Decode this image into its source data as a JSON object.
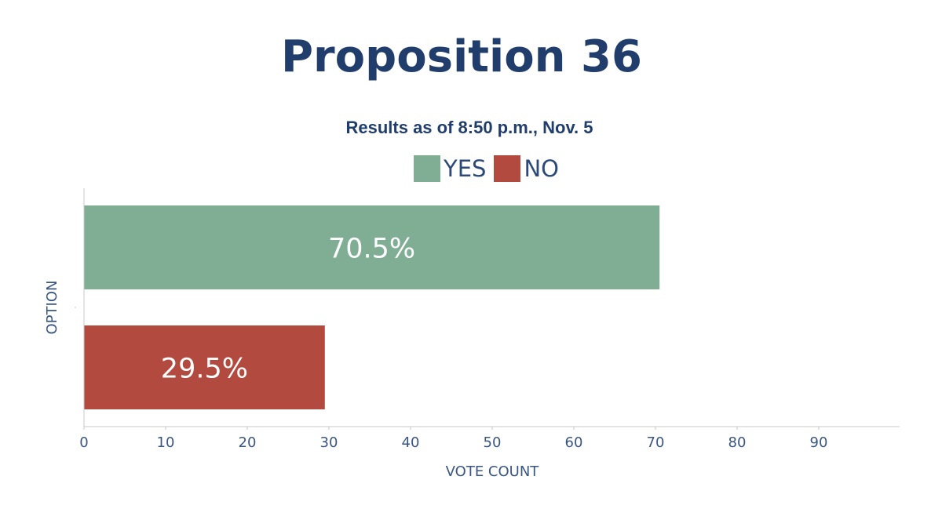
{
  "chart_data": {
    "type": "bar",
    "orientation": "horizontal",
    "title": "Proposition 36",
    "subtitle": "Results as of 8:50 p.m., Nov. 5",
    "xlabel": "VOTE COUNT",
    "ylabel": "OPTION",
    "xlim": [
      0,
      100
    ],
    "xticks": [
      "0",
      "10",
      "20",
      "30",
      "40",
      "50",
      "60",
      "70",
      "80",
      "90"
    ],
    "grid": false,
    "legend_position": "top-center",
    "categories": [
      "YES",
      "NO"
    ],
    "values": [
      70.5,
      29.5
    ],
    "data_labels": [
      "70.5%",
      "29.5%"
    ],
    "colors": [
      "#7fae94",
      "#b34a3f"
    ]
  },
  "theme": {
    "title_color": "#213d6b",
    "axis_color": "#3a5683"
  }
}
